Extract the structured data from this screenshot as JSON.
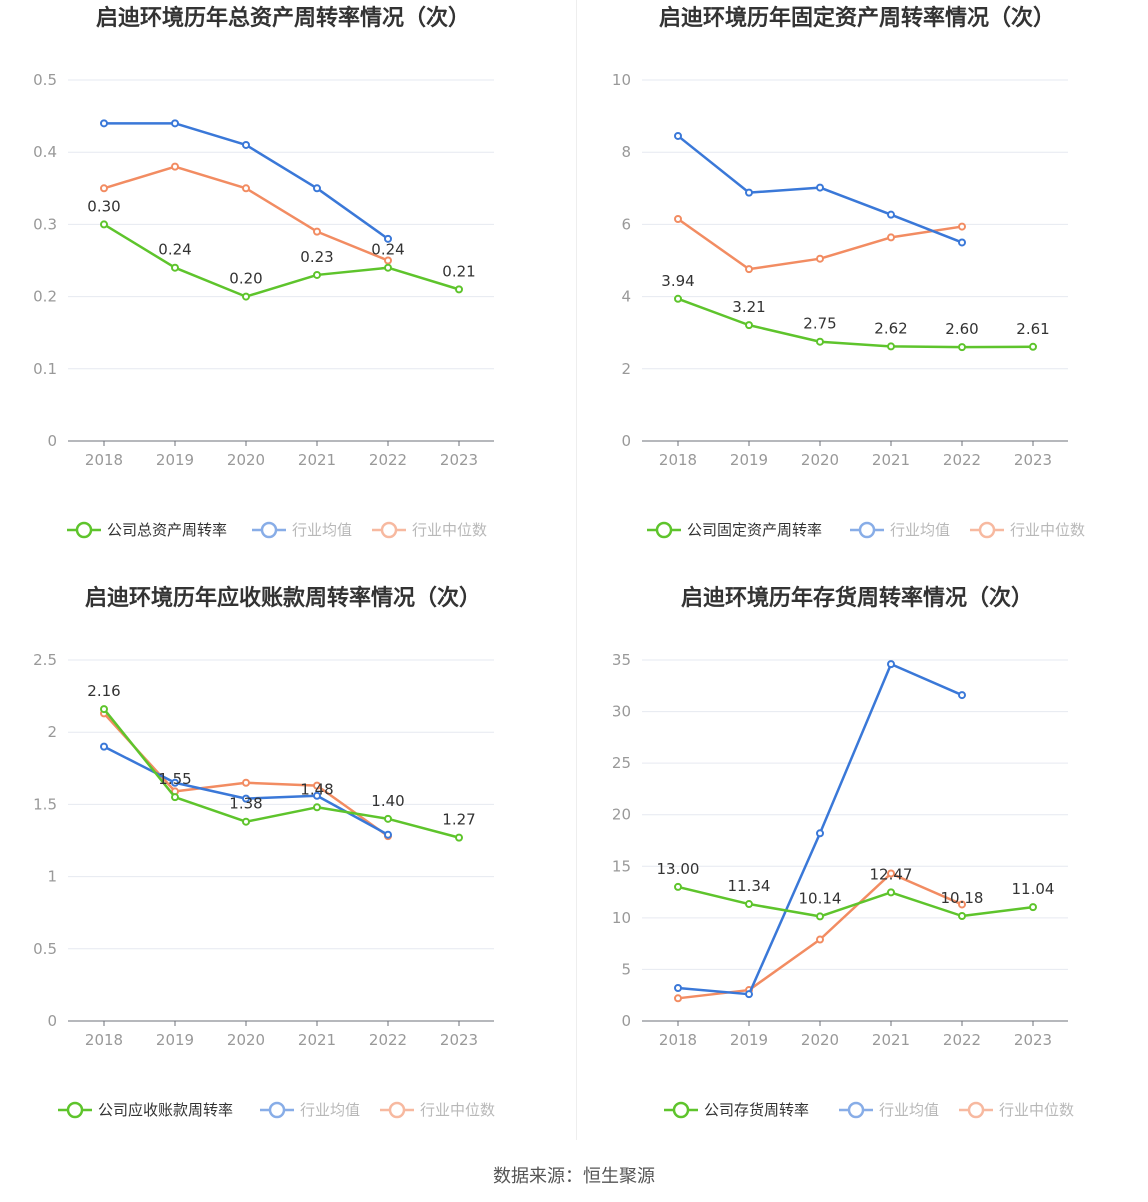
{
  "colors": {
    "company": "#5ec42c",
    "avg": "#3a78d8",
    "median": "#f28c62"
  },
  "source": "数据来源：恒生聚源",
  "chart_data": [
    {
      "type": "line",
      "title": "启迪环境历年总资产周转率情况（次）",
      "categories": [
        "2018",
        "2019",
        "2020",
        "2021",
        "2022",
        "2023"
      ],
      "ylim": [
        0,
        0.5
      ],
      "yticks": [
        "0",
        "0.1",
        "0.2",
        "0.3",
        "0.4",
        "0.5"
      ],
      "series": [
        {
          "name": "公司总资产周转率",
          "values": [
            0.3,
            0.24,
            0.2,
            0.23,
            0.24,
            0.21
          ],
          "labels": [
            "0.30",
            "0.24",
            "0.20",
            "0.23",
            "0.24",
            "0.21"
          ]
        },
        {
          "name": "行业均值",
          "values": [
            0.44,
            0.44,
            0.41,
            0.35,
            0.28,
            null
          ]
        },
        {
          "name": "行业中位数",
          "values": [
            0.35,
            0.38,
            0.35,
            0.29,
            0.25,
            null
          ]
        }
      ],
      "grid": true,
      "legend": "bottom"
    },
    {
      "type": "line",
      "title": "启迪环境历年固定资产周转率情况（次）",
      "categories": [
        "2018",
        "2019",
        "2020",
        "2021",
        "2022",
        "2023"
      ],
      "ylim": [
        0,
        10
      ],
      "yticks": [
        "0",
        "2",
        "4",
        "6",
        "8",
        "10"
      ],
      "series": [
        {
          "name": "公司固定资产周转率",
          "values": [
            3.94,
            3.21,
            2.75,
            2.62,
            2.6,
            2.61
          ],
          "labels": [
            "3.94",
            "3.21",
            "2.75",
            "2.62",
            "2.60",
            "2.61"
          ]
        },
        {
          "name": "行业均值",
          "values": [
            8.45,
            6.88,
            7.02,
            6.27,
            5.5,
            null
          ]
        },
        {
          "name": "行业中位数",
          "values": [
            6.15,
            4.76,
            5.05,
            5.64,
            5.94,
            null
          ]
        }
      ],
      "grid": true,
      "legend": "bottom"
    },
    {
      "type": "line",
      "title": "启迪环境历年应收账款周转率情况（次）",
      "categories": [
        "2018",
        "2019",
        "2020",
        "2021",
        "2022",
        "2023"
      ],
      "ylim": [
        0,
        2.5
      ],
      "yticks": [
        "0",
        "0.5",
        "1",
        "1.5",
        "2",
        "2.5"
      ],
      "series": [
        {
          "name": "公司应收账款周转率",
          "values": [
            2.16,
            1.55,
            1.38,
            1.48,
            1.4,
            1.27
          ],
          "labels": [
            "2.16",
            "1.55",
            "1.38",
            "1.48",
            "1.40",
            "1.27"
          ]
        },
        {
          "name": "行业均值",
          "values": [
            1.9,
            1.65,
            1.54,
            1.56,
            1.29,
            null
          ]
        },
        {
          "name": "行业中位数",
          "values": [
            2.13,
            1.59,
            1.65,
            1.63,
            1.28,
            null
          ]
        }
      ],
      "grid": true,
      "legend": "bottom"
    },
    {
      "type": "line",
      "title": "启迪环境历年存货周转率情况（次）",
      "categories": [
        "2018",
        "2019",
        "2020",
        "2021",
        "2022",
        "2023"
      ],
      "ylim": [
        0,
        35
      ],
      "yticks": [
        "0",
        "5",
        "10",
        "15",
        "20",
        "25",
        "30",
        "35"
      ],
      "series": [
        {
          "name": "公司存货周转率",
          "values": [
            13.0,
            11.34,
            10.14,
            12.47,
            10.18,
            11.04
          ],
          "labels": [
            "13.00",
            "11.34",
            "10.14",
            "12.47",
            "10.18",
            "11.04"
          ]
        },
        {
          "name": "行业均值",
          "values": [
            3.2,
            2.6,
            18.2,
            34.6,
            31.6,
            null
          ]
        },
        {
          "name": "行业中位数",
          "values": [
            2.2,
            3.0,
            7.9,
            14.3,
            11.3,
            null
          ]
        }
      ],
      "grid": true,
      "legend": "bottom"
    }
  ]
}
